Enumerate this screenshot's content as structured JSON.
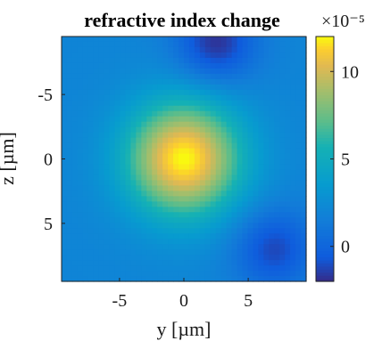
{
  "chart_data": {
    "type": "heatmap",
    "title": "refractive index change",
    "xlabel": "y [µm]",
    "ylabel": "z [µm]",
    "x_ticks": [
      "-5",
      "0",
      "5"
    ],
    "y_ticks": [
      "-5",
      "0",
      "5"
    ],
    "xlim": [
      -9.5,
      9.5
    ],
    "ylim": [
      -9.5,
      9.5
    ],
    "y_direction": "reversed",
    "colorbar": {
      "label_exponent": "×10⁻⁵",
      "ticks": [
        "0",
        "5",
        "10"
      ],
      "range": [
        -2,
        12
      ],
      "colormap": "parula"
    },
    "field": {
      "description": "central circular peak",
      "peak_value": 12,
      "peak_center": [
        0,
        0
      ],
      "peak_radius": 5,
      "background_value": 2,
      "minima": [
        {
          "y": 2.5,
          "z": -9,
          "value": -1.8
        },
        {
          "y": 7,
          "z": 7,
          "value": -1.2
        }
      ]
    }
  }
}
